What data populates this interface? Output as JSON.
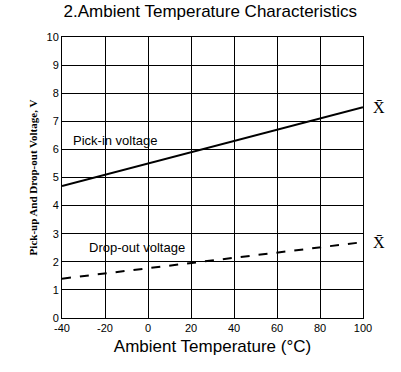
{
  "chart_data": {
    "type": "line",
    "title": "2.Ambient Temperature Characteristics",
    "x_label": "Ambient Temperature (°C)",
    "y_label": "Pick-up And Drop-out Voltage, V",
    "x": [
      -40,
      100
    ],
    "series": [
      {
        "name": "Pick-in voltage",
        "color": "#000000",
        "line_style": "solid",
        "values": [
          4.7,
          7.5
        ]
      },
      {
        "name": "Drop-out voltage",
        "color": "#000000",
        "line_style": "dashed",
        "values": [
          1.4,
          2.7
        ]
      }
    ],
    "annotations": [
      {
        "text": "Pick-in voltage",
        "x": -15,
        "y": 6.3
      },
      {
        "text": "Drop-out voltage",
        "x": -5,
        "y": 2.5
      },
      {
        "text": "X̄",
        "x": 100,
        "y": 7.5
      },
      {
        "text": "X̄",
        "x": 100,
        "y": 2.7
      }
    ],
    "xlim": [
      -40,
      100
    ],
    "xticks": [
      -40,
      -20,
      0,
      20,
      40,
      60,
      80,
      100
    ],
    "ylim": [
      0,
      10
    ],
    "yticks": [
      0,
      1,
      2,
      3,
      4,
      5,
      6,
      7,
      8,
      9,
      10
    ],
    "grid": true
  }
}
